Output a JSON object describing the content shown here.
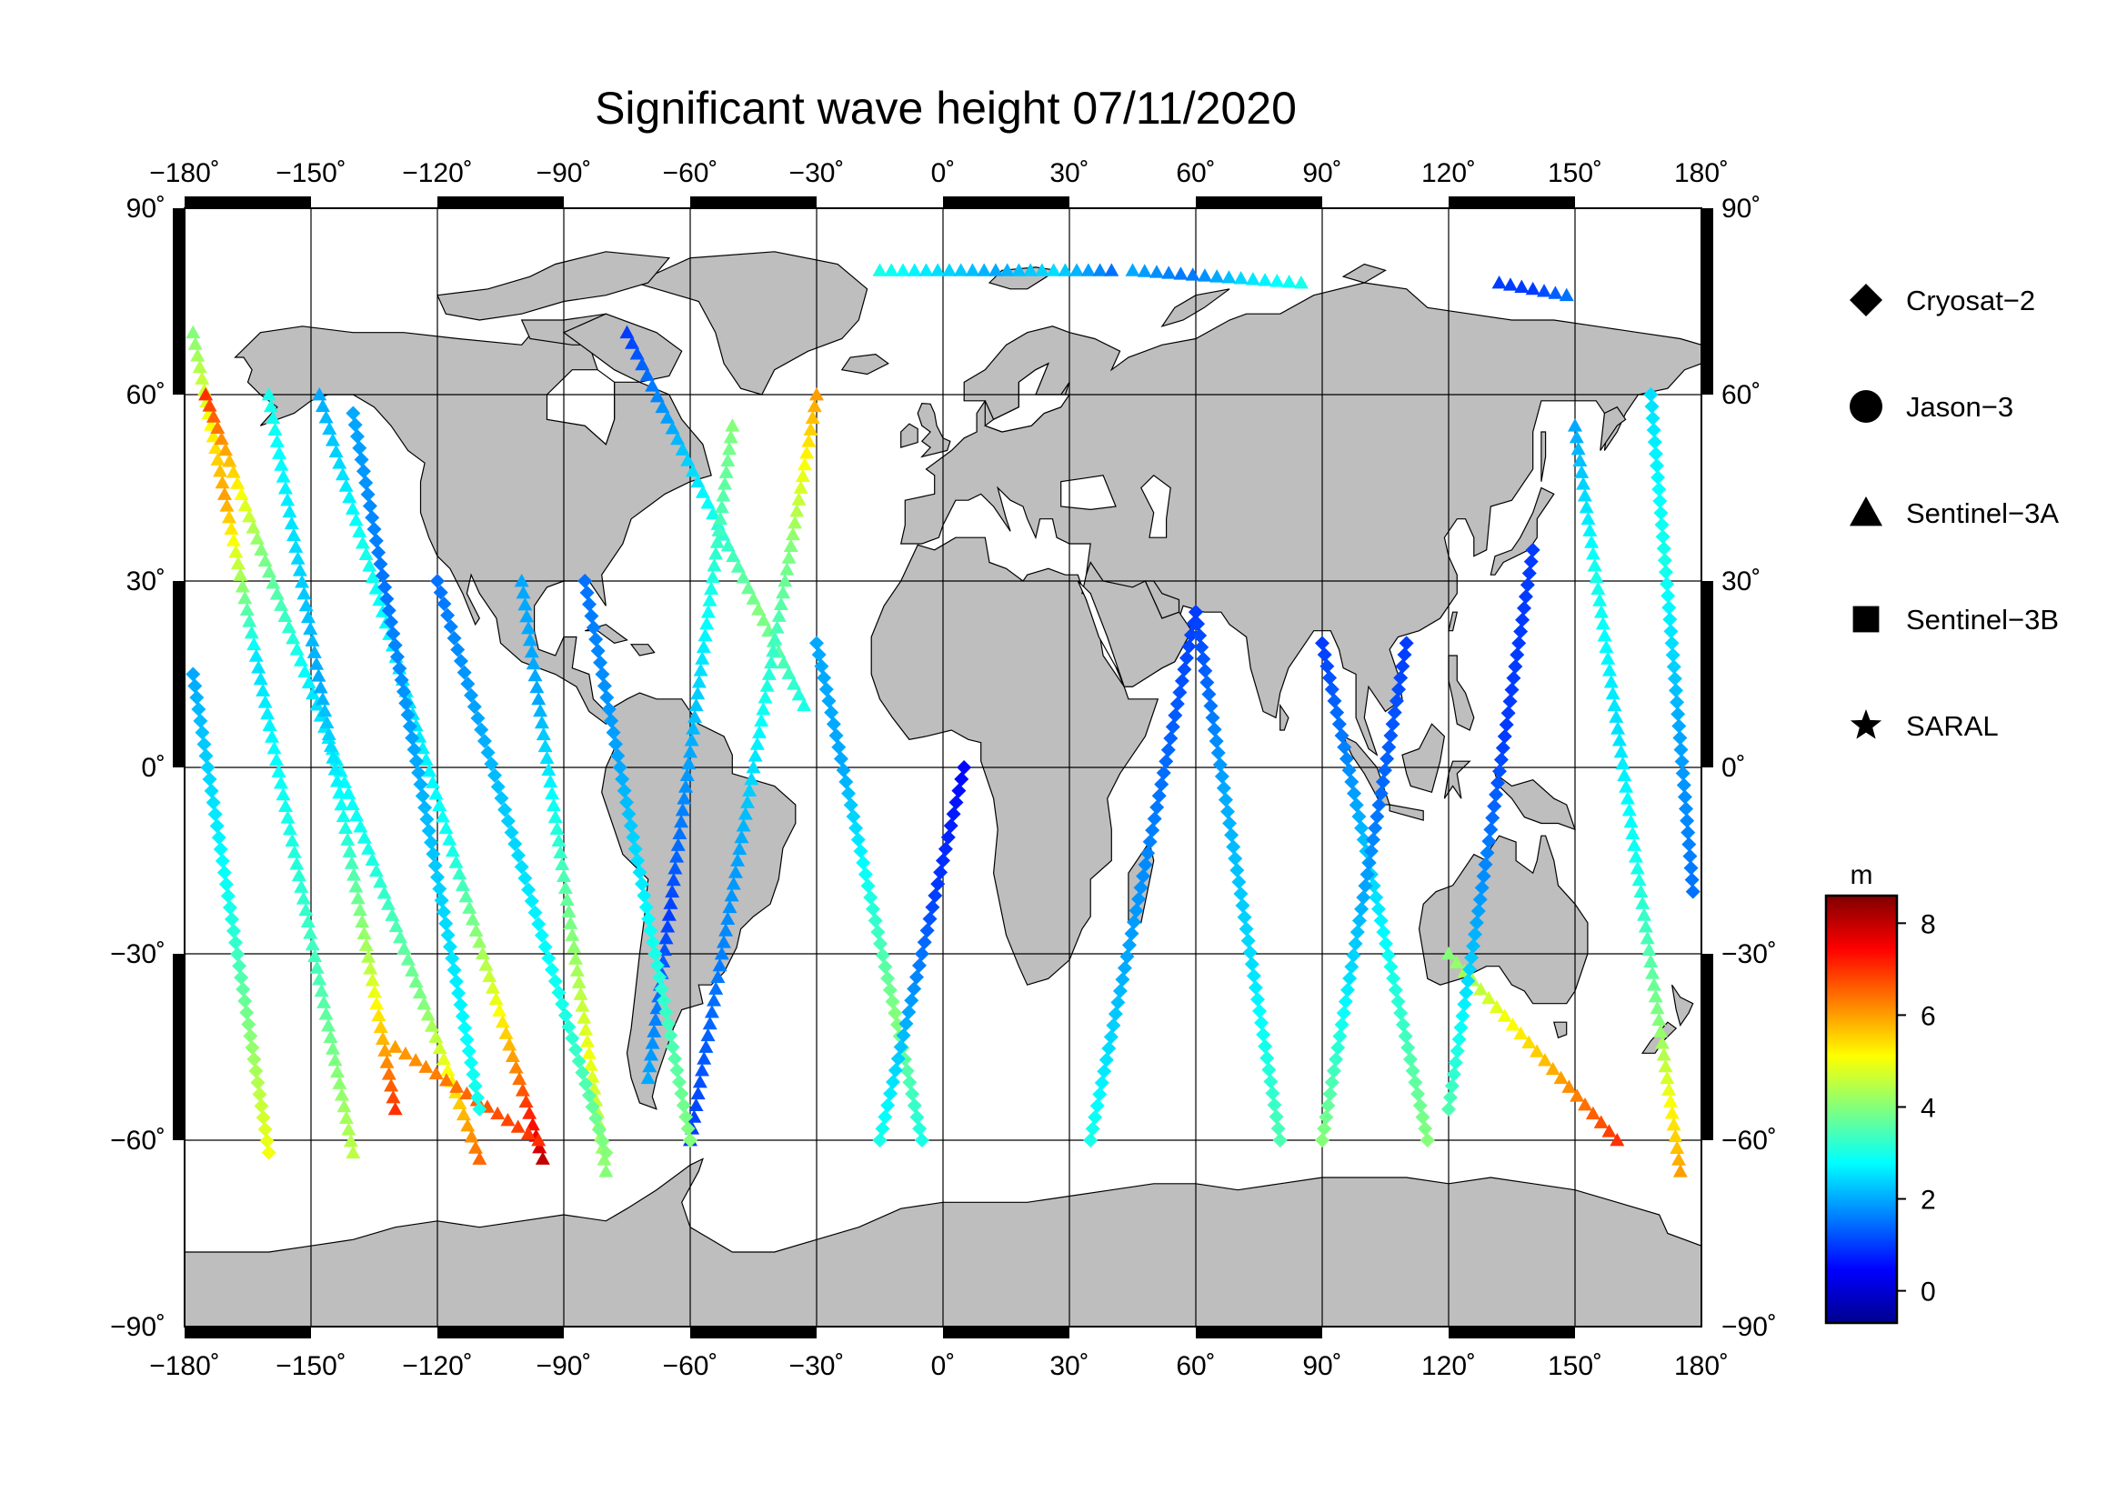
{
  "title": "Significant wave height 07/11/2020",
  "map": {
    "projection": "equirectangular",
    "lon_range": [
      -180,
      180
    ],
    "lat_range": [
      -90,
      90
    ],
    "lon_ticks": [
      "−180˚",
      "−150˚",
      "−120˚",
      "−90˚",
      "−60˚",
      "−30˚",
      "0˚",
      "30˚",
      "60˚",
      "90˚",
      "120˚",
      "150˚",
      "180˚"
    ],
    "lat_ticks": [
      "90˚",
      "60˚",
      "30˚",
      "0˚",
      "−30˚",
      "−60˚",
      "−90˚"
    ],
    "land_color": "#bebebe",
    "ocean_color": "#ffffff",
    "grid": true
  },
  "legend": {
    "items": [
      {
        "label": "Cryosat−2",
        "icon": "diamond"
      },
      {
        "label": "Jason−3",
        "icon": "circle"
      },
      {
        "label": "Sentinel−3A",
        "icon": "triangle"
      },
      {
        "label": "Sentinel−3B",
        "icon": "square"
      },
      {
        "label": "SARAL",
        "icon": "star"
      }
    ]
  },
  "colorbar": {
    "unit": "m",
    "range": [
      -0.7,
      8.6
    ],
    "ticks": [
      {
        "value": 0,
        "label": "0"
      },
      {
        "value": 2,
        "label": "2"
      },
      {
        "value": 4,
        "label": "4"
      },
      {
        "value": 6,
        "label": "6"
      },
      {
        "value": 8,
        "label": "8"
      }
    ],
    "colormap": "jet"
  },
  "chart_data": {
    "type": "scatter",
    "title": "Significant wave height 07/11/2020",
    "x": "longitude",
    "y": "latitude",
    "xlim": [
      -180,
      180
    ],
    "ylim": [
      -90,
      90
    ],
    "color_variable": "significant wave height (m)",
    "tracks": [
      {
        "name": "Sentinel−3A",
        "marker": "triangle",
        "from": [
          -178,
          70
        ],
        "to": [
          -140,
          -62
        ],
        "swh": [
          4,
          6,
          2.5,
          3,
          3.5,
          4.5
        ]
      },
      {
        "name": "Sentinel−3A",
        "marker": "triangle",
        "from": [
          -175,
          60
        ],
        "to": [
          -110,
          -63
        ],
        "swh": [
          7,
          4,
          2.5,
          3,
          4,
          6.5
        ]
      },
      {
        "name": "Sentinel−3A",
        "marker": "triangle",
        "from": [
          -160,
          60
        ],
        "to": [
          -130,
          -55
        ],
        "swh": [
          3,
          2.5,
          2,
          3,
          4.5,
          7
        ]
      },
      {
        "name": "Sentinel−3A",
        "marker": "triangle",
        "from": [
          -148,
          60
        ],
        "to": [
          -95,
          -63
        ],
        "swh": [
          2,
          3,
          2.5,
          3,
          5,
          8
        ]
      },
      {
        "name": "Sentinel−3A",
        "marker": "triangle",
        "from": [
          -100,
          30
        ],
        "to": [
          -80,
          -65
        ],
        "swh": [
          2,
          2,
          3,
          4,
          5,
          4
        ]
      },
      {
        "name": "Sentinel−3A",
        "marker": "triangle",
        "from": [
          -130,
          -45
        ],
        "to": [
          -96,
          -60
        ],
        "swh": [
          6,
          6.5,
          7
        ]
      },
      {
        "name": "Sentinel−3A",
        "marker": "triangle",
        "from": [
          -75,
          70
        ],
        "to": [
          -33,
          10
        ],
        "swh": [
          1,
          2,
          3,
          4,
          3
        ]
      },
      {
        "name": "Sentinel−3A",
        "marker": "triangle",
        "from": [
          -30,
          60
        ],
        "to": [
          -60,
          -60
        ],
        "swh": [
          6,
          4,
          3,
          2,
          1.5,
          1
        ]
      },
      {
        "name": "Sentinel−3A",
        "marker": "triangle",
        "from": [
          -50,
          55
        ],
        "to": [
          -70,
          -50
        ],
        "swh": [
          4,
          3,
          2,
          1,
          2
        ]
      },
      {
        "name": "Sentinel−3A",
        "marker": "triangle",
        "from": [
          -15,
          80
        ],
        "to": [
          40,
          80
        ],
        "swh": [
          3,
          2.5,
          2,
          2.5,
          1.5
        ]
      },
      {
        "name": "Sentinel−3A",
        "marker": "triangle",
        "from": [
          45,
          80
        ],
        "to": [
          85,
          78
        ],
        "swh": [
          2,
          1.5,
          2.5,
          3
        ]
      },
      {
        "name": "Sentinel−3A",
        "marker": "triangle",
        "from": [
          132,
          78
        ],
        "to": [
          148,
          76
        ],
        "swh": [
          1,
          1,
          1.5
        ]
      },
      {
        "name": "Sentinel−3A",
        "marker": "triangle",
        "from": [
          150,
          55
        ],
        "to": [
          175,
          -65
        ],
        "swh": [
          2,
          3,
          2.5,
          3,
          4,
          6
        ]
      },
      {
        "name": "Sentinel−3A",
        "marker": "triangle",
        "from": [
          120,
          -30
        ],
        "to": [
          160,
          -60
        ],
        "swh": [
          4,
          5,
          6,
          7
        ]
      },
      {
        "name": "Cryosat−2",
        "marker": "diamond",
        "from": [
          -178,
          15
        ],
        "to": [
          -160,
          -62
        ],
        "swh": [
          2,
          2.5,
          3,
          4,
          5
        ]
      },
      {
        "name": "Cryosat−2",
        "marker": "diamond",
        "from": [
          -140,
          57
        ],
        "to": [
          -110,
          -55
        ],
        "swh": [
          2,
          1.5,
          2,
          2.5,
          3
        ]
      },
      {
        "name": "Cryosat−2",
        "marker": "diamond",
        "from": [
          -120,
          30
        ],
        "to": [
          -80,
          -62
        ],
        "swh": [
          1.5,
          2,
          2.5,
          3,
          4
        ]
      },
      {
        "name": "Cryosat−2",
        "marker": "diamond",
        "from": [
          -85,
          30
        ],
        "to": [
          -60,
          -60
        ],
        "swh": [
          1.5,
          2,
          3,
          4
        ]
      },
      {
        "name": "Cryosat−2",
        "marker": "diamond",
        "from": [
          -30,
          20
        ],
        "to": [
          -5,
          -60
        ],
        "swh": [
          2,
          2,
          3,
          4,
          3
        ]
      },
      {
        "name": "Cryosat−2",
        "marker": "diamond",
        "from": [
          5,
          0
        ],
        "to": [
          -15,
          -60
        ],
        "swh": [
          0.5,
          1,
          2,
          3
        ]
      },
      {
        "name": "Cryosat−2",
        "marker": "diamond",
        "from": [
          60,
          25
        ],
        "to": [
          35,
          -60
        ],
        "swh": [
          1,
          1.5,
          2,
          3
        ]
      },
      {
        "name": "Cryosat−2",
        "marker": "diamond",
        "from": [
          60,
          25
        ],
        "to": [
          80,
          -60
        ],
        "swh": [
          1,
          2,
          2.5,
          3.5
        ]
      },
      {
        "name": "Cryosat−2",
        "marker": "diamond",
        "from": [
          90,
          20
        ],
        "to": [
          115,
          -60
        ],
        "swh": [
          1,
          2,
          3,
          4
        ]
      },
      {
        "name": "Cryosat−2",
        "marker": "diamond",
        "from": [
          110,
          20
        ],
        "to": [
          90,
          -60
        ],
        "swh": [
          1,
          1.5,
          2.5,
          4
        ]
      },
      {
        "name": "Cryosat−2",
        "marker": "diamond",
        "from": [
          140,
          35
        ],
        "to": [
          120,
          -55
        ],
        "swh": [
          1,
          1,
          2,
          3.5
        ]
      },
      {
        "name": "Cryosat−2",
        "marker": "diamond",
        "from": [
          168,
          60
        ],
        "to": [
          178,
          -20
        ],
        "swh": [
          2.5,
          3,
          2,
          1.5
        ]
      }
    ]
  }
}
